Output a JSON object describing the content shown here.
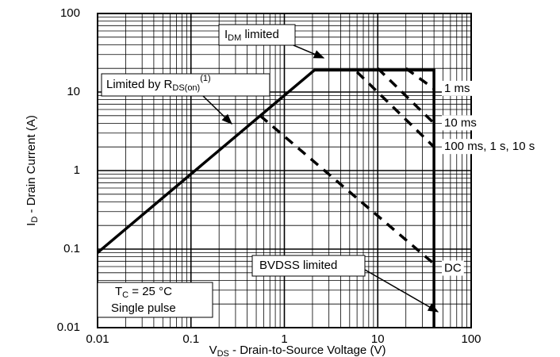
{
  "chart_data": {
    "type": "line",
    "x_label": {
      "main": "V",
      "sub": "DS",
      "rest": " - Drain-to-Source Voltage (V)"
    },
    "y_label": {
      "main": "I",
      "sub": "D",
      "rest": " - Drain Current (A)"
    },
    "log_x": true,
    "log_y": true,
    "xlim": [
      0.01,
      100
    ],
    "ylim": [
      0.01,
      100
    ],
    "xticks": [
      0.01,
      0.1,
      1,
      10,
      100
    ],
    "yticks": [
      0.01,
      0.1,
      1,
      10,
      100
    ],
    "grid": true,
    "minor_grid": true,
    "limit_line": {
      "color": "#000000",
      "x": [
        0.01,
        2.1,
        40,
        40
      ],
      "values": [
        0.09,
        19,
        19,
        0.01
      ]
    },
    "series": [
      {
        "name": "1 ms",
        "color": "#000000",
        "dashed": true,
        "x": [
          20,
          40
        ],
        "values": [
          20,
          11
        ]
      },
      {
        "name": "10 ms",
        "color": "#000000",
        "dashed": true,
        "x": [
          10,
          40
        ],
        "values": [
          20,
          4
        ]
      },
      {
        "name": "100 ms, 1 s, 10 s",
        "color": "#000000",
        "dashed": true,
        "x": [
          6,
          40
        ],
        "values": [
          18,
          2
        ]
      },
      {
        "name": "DC",
        "color": "#000000",
        "dashed": true,
        "x": [
          0.55,
          40
        ],
        "values": [
          5,
          0.065
        ]
      }
    ],
    "annotations": {
      "idm": {
        "main": "I",
        "sub": "DM",
        "rest": " limited"
      },
      "rds": {
        "main": "Limited by R",
        "sub": "DS(on)",
        "sup": "(1)"
      },
      "bvdss": "BVDSS limited",
      "tc": {
        "main": "T",
        "sub": "C",
        "rest": " = 25 °C"
      },
      "pulse": "Single pulse"
    }
  }
}
